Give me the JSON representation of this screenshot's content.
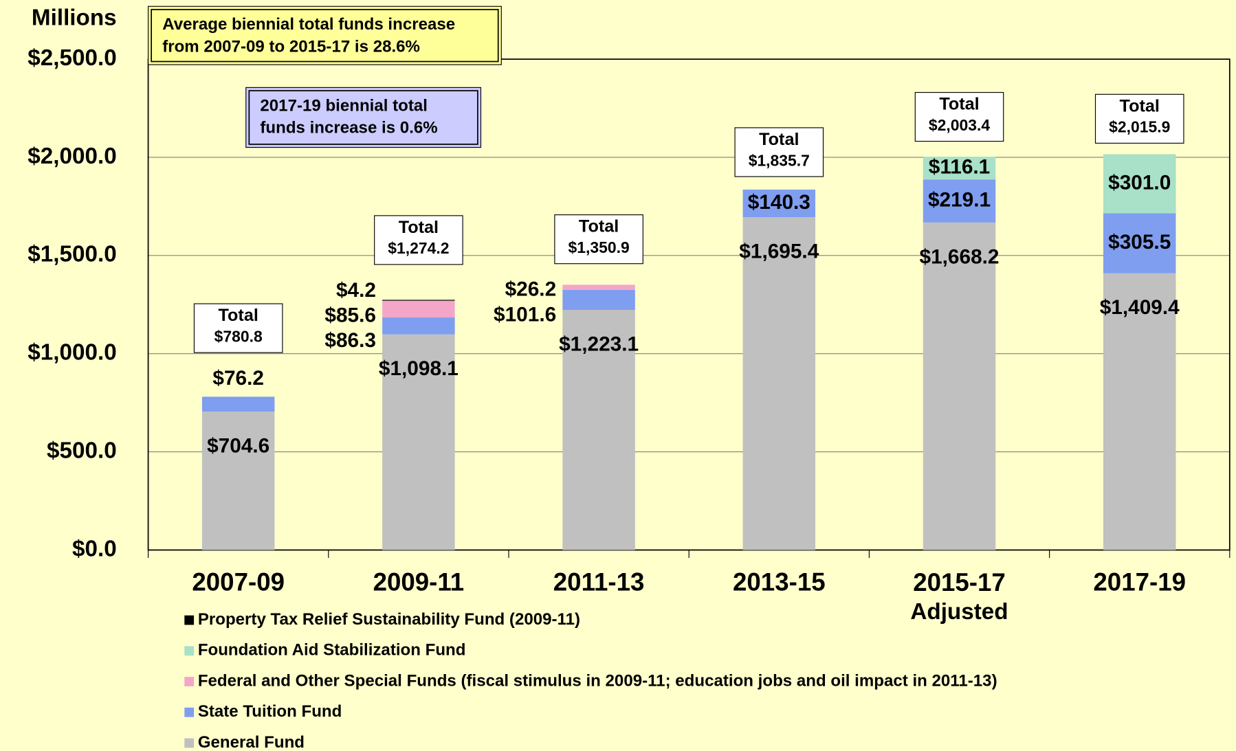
{
  "chart_data": {
    "type": "stacked_bar",
    "y_label": "Millions",
    "categories": [
      "2007-09",
      "2009-11",
      "2011-13",
      "2013-15",
      "2015-17 Adjusted",
      "2017-19"
    ],
    "series": [
      {
        "name": "General Fund",
        "color": "#c0c0c0",
        "values": [
          704.6,
          1098.1,
          1223.1,
          1695.4,
          1668.2,
          1409.4
        ],
        "value_labels": [
          "$704.6",
          "$1,098.1",
          "$1,223.1",
          "$1,695.4",
          "$1,668.2",
          "$1,409.4"
        ]
      },
      {
        "name": "State Tuition Fund",
        "color": "#7f9ef0",
        "values": [
          76.2,
          86.3,
          101.6,
          140.3,
          219.1,
          305.5
        ],
        "value_labels": [
          "$76.2",
          "$86.3",
          "$101.6",
          "$140.3",
          "$219.1",
          "$305.5"
        ]
      },
      {
        "name": "Federal and Other Special Funds (fiscal stimulus in 2009-11; education jobs and oil impact in 2011-13)",
        "color": "#f4a6c8",
        "values": [
          null,
          85.6,
          26.2,
          null,
          null,
          null
        ],
        "value_labels": [
          null,
          "$85.6",
          "$26.2",
          null,
          null,
          null
        ]
      },
      {
        "name": "Foundation Aid Stabilization Fund",
        "color": "#a8e0c8",
        "values": [
          null,
          null,
          null,
          null,
          116.1,
          301.0
        ],
        "value_labels": [
          null,
          null,
          null,
          null,
          "$116.1",
          "$301.0"
        ]
      },
      {
        "name": "Property Tax Relief Sustainability Fund (2009-11)",
        "color": "#000000",
        "values": [
          null,
          4.2,
          null,
          null,
          null,
          null
        ],
        "value_labels": [
          null,
          "$4.2",
          null,
          null,
          null,
          null
        ]
      }
    ],
    "total_label": "Total",
    "totals": [
      780.8,
      1274.2,
      1350.9,
      1835.7,
      2003.4,
      2015.9
    ],
    "total_value_labels": [
      "$780.8",
      "$1,274.2",
      "$1,350.9",
      "$1,835.7",
      "$2,003.4",
      "$2,015.9"
    ],
    "ylim": [
      0,
      2500
    ],
    "yticks": [
      {
        "value": 0,
        "label": "$0.0"
      },
      {
        "value": 500,
        "label": "$500.0"
      },
      {
        "value": 1000,
        "label": "$1,000.0"
      },
      {
        "value": 1500,
        "label": "$1,500.0"
      },
      {
        "value": 2000,
        "label": "$2,000.0"
      },
      {
        "value": 2500,
        "label": "$2,500.0"
      }
    ],
    "grid": true,
    "legend": "bottom-left",
    "annotations": [
      {
        "lines": [
          "Average biennial total funds increase",
          "from 2007-09 to 2015-17 is 28.6%"
        ],
        "color": "#ffff99"
      },
      {
        "lines": [
          "2017-19   biennial   total",
          "funds increase is 0.6%"
        ],
        "color": "#ccccff"
      }
    ]
  }
}
